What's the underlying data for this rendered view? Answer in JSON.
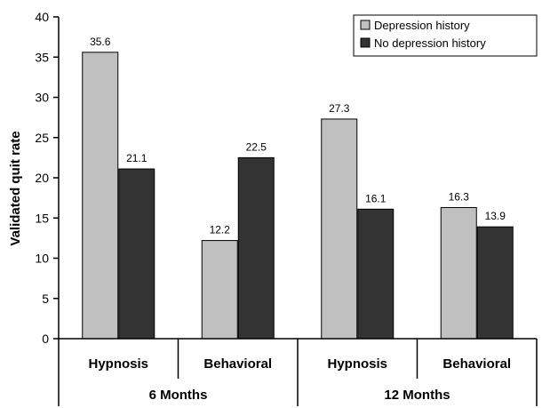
{
  "chart_data": {
    "type": "bar",
    "ylabel": "Validated quit rate",
    "ylim": [
      0,
      40
    ],
    "yticks": [
      0,
      5,
      10,
      15,
      20,
      25,
      30,
      35,
      40
    ],
    "grid": false,
    "legend_position": "top-right",
    "groups": [
      "6 Months",
      "12 Months"
    ],
    "categories": [
      "Hypnosis",
      "Behavioral",
      "Hypnosis",
      "Behavioral"
    ],
    "series": [
      {
        "name": "Depression history",
        "color": "#c0c0c0",
        "values": [
          35.6,
          12.2,
          27.3,
          16.3
        ],
        "labels": [
          "35.6",
          "12.2",
          "27.3",
          "16.3"
        ]
      },
      {
        "name": "No depression history",
        "color": "#333333",
        "values": [
          21.1,
          22.5,
          16.1,
          13.9
        ],
        "labels": [
          "21.1",
          "22.5",
          "16.1",
          "13.9"
        ]
      }
    ]
  }
}
